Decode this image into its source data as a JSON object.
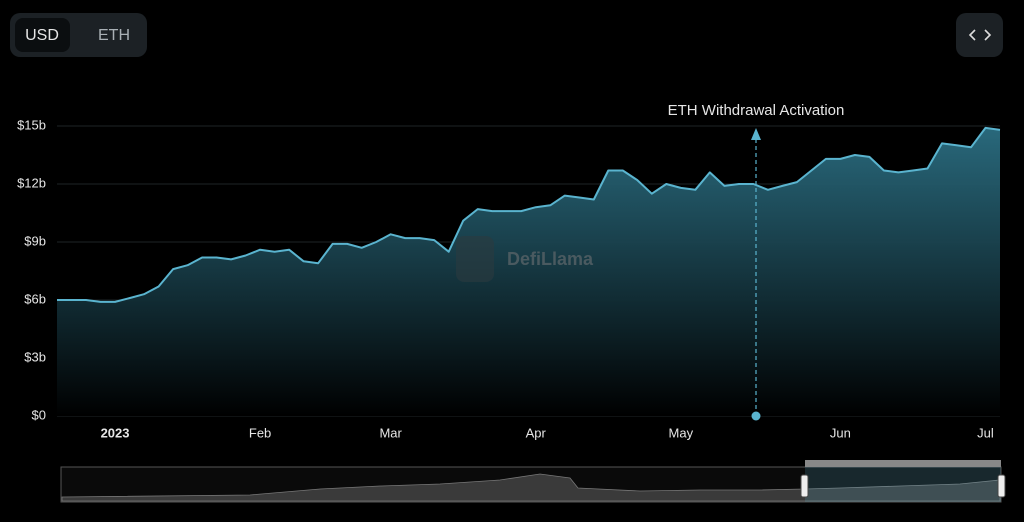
{
  "toggle": [
    "USD",
    "ETH"
  ],
  "watermark": "DefiLlama",
  "chart_data": {
    "type": "area",
    "annotation": "ETH Withdrawal Activation",
    "categories": [
      null,
      null,
      null,
      null,
      "2023",
      null,
      null,
      null,
      null,
      null,
      null,
      null,
      null,
      null,
      "Feb",
      null,
      null,
      null,
      null,
      null,
      null,
      null,
      null,
      "Mar",
      null,
      null,
      null,
      null,
      null,
      null,
      null,
      null,
      null,
      "Apr",
      null,
      null,
      null,
      null,
      null,
      null,
      null,
      null,
      null,
      "May",
      null,
      null,
      null,
      null,
      null,
      null,
      null,
      null,
      null,
      null,
      "Jun",
      null,
      null,
      null,
      null,
      null,
      null,
      null,
      null,
      null,
      "Jul",
      null
    ],
    "values": [
      6.0,
      6.0,
      6.0,
      5.9,
      5.9,
      6.1,
      6.3,
      6.7,
      7.6,
      7.8,
      8.2,
      8.2,
      8.1,
      8.3,
      8.6,
      8.5,
      8.6,
      8.0,
      7.9,
      8.9,
      8.9,
      8.7,
      9.0,
      9.4,
      9.2,
      9.2,
      9.1,
      8.5,
      10.1,
      10.7,
      10.6,
      10.6,
      10.6,
      10.8,
      10.9,
      11.4,
      11.3,
      11.2,
      12.7,
      12.7,
      12.2,
      11.5,
      12.0,
      11.8,
      11.7,
      12.6,
      11.9,
      12.0,
      12.0,
      11.7,
      11.9,
      12.1,
      12.7,
      13.3,
      13.3,
      13.5,
      13.4,
      12.7,
      12.6,
      12.7,
      12.8,
      14.1,
      14.0,
      13.9,
      14.9,
      14.8
    ],
    "color": "#5ab4cf",
    "ylim": [
      0,
      15
    ],
    "yticks": [
      {
        "value": 0,
        "label": "$0"
      },
      {
        "value": 3,
        "label": "$3b"
      },
      {
        "value": 6,
        "label": "$6b"
      },
      {
        "value": 9,
        "label": "$9b"
      },
      {
        "value": 12,
        "label": "$12b"
      },
      {
        "value": 15,
        "label": "$15b"
      }
    ],
    "grid": true
  }
}
